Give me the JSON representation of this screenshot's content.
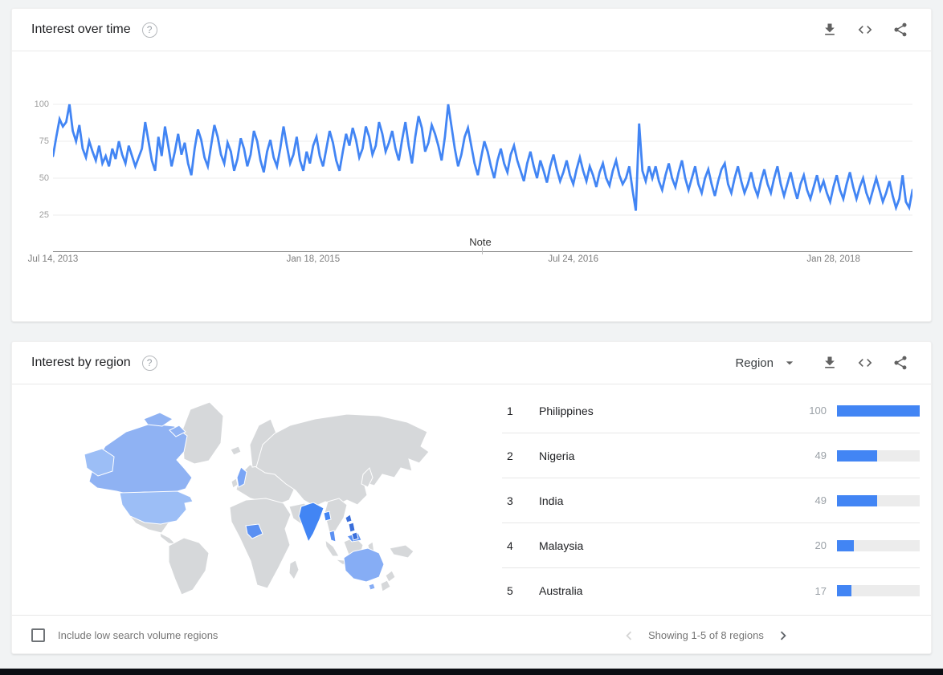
{
  "page": {
    "background": "#f1f3f4",
    "card_background": "#ffffff",
    "bottom_bar_color": "#0b0e13",
    "accent_blue": "#4285f4"
  },
  "interest_over_time": {
    "title": "Interest over time",
    "help_icon": "help-circle-icon",
    "toolbar_icons": [
      "download-icon",
      "embed-code-icon",
      "share-icon"
    ],
    "note_label": "Note",
    "y_ticks": [
      "100",
      "75",
      "50",
      "25"
    ],
    "x_ticks": [
      "Jul 14, 2013",
      "Jan 18, 2015",
      "Jul 24, 2016",
      "Jan 28, 2018"
    ]
  },
  "interest_by_region": {
    "title": "Interest by region",
    "help_icon": "help-circle-icon",
    "region_selector": {
      "label": "Region",
      "icon": "dropdown-arrow-icon"
    },
    "toolbar_icons": [
      "download-icon",
      "embed-code-icon",
      "share-icon"
    ],
    "rows": [
      {
        "rank": "1",
        "country": "Philippines",
        "value": 100
      },
      {
        "rank": "2",
        "country": "Nigeria",
        "value": 49
      },
      {
        "rank": "3",
        "country": "India",
        "value": 49
      },
      {
        "rank": "4",
        "country": "Malaysia",
        "value": 20
      },
      {
        "rank": "5",
        "country": "Australia",
        "value": 17
      }
    ],
    "footer": {
      "checkbox_label": "Include low search volume regions",
      "checkbox_checked": false,
      "pagination": "Showing 1-5 of 8 regions",
      "prev_enabled": false,
      "next_enabled": true
    },
    "map": {
      "base_color": "#d6d8da",
      "countries": {
        "canada": "#8fb2f3",
        "alaska": "#9cbef6",
        "usa": "#9cbef6",
        "uk": "#7aa5f5",
        "nigeria": "#5b90f2",
        "india": "#4285f4",
        "bangladesh": "#4285f4",
        "malaysia": "#5b90f2",
        "philippines": "#3b6fdb",
        "australia": "#86adf5"
      }
    }
  },
  "chart_data": [
    {
      "type": "line",
      "title": "Interest over time",
      "ylabel": "",
      "xlabel": "",
      "ylim": [
        0,
        100
      ],
      "y_ticks": [
        25,
        50,
        75,
        100
      ],
      "grid": true,
      "series_color": "#4285f4",
      "frequency": "weekly",
      "x_tick_labels": [
        "Jul 14, 2013",
        "Jan 18, 2015",
        "Jul 24, 2016",
        "Jan 28, 2018"
      ],
      "x_tick_indices": [
        0,
        79,
        158,
        237
      ],
      "values": [
        65,
        78,
        90,
        85,
        88,
        100,
        82,
        75,
        86,
        70,
        64,
        75,
        68,
        62,
        72,
        60,
        65,
        58,
        70,
        63,
        75,
        66,
        60,
        72,
        65,
        58,
        64,
        70,
        88,
        75,
        62,
        55,
        78,
        65,
        85,
        72,
        58,
        68,
        80,
        66,
        74,
        60,
        52,
        70,
        83,
        76,
        64,
        58,
        72,
        86,
        78,
        66,
        60,
        74,
        68,
        55,
        63,
        77,
        70,
        58,
        66,
        82,
        75,
        62,
        54,
        68,
        76,
        64,
        58,
        70,
        85,
        72,
        60,
        66,
        78,
        62,
        55,
        68,
        60,
        72,
        78,
        65,
        58,
        70,
        82,
        74,
        62,
        55,
        68,
        80,
        72,
        84,
        76,
        64,
        70,
        85,
        78,
        66,
        72,
        88,
        80,
        68,
        74,
        82,
        70,
        62,
        76,
        88,
        72,
        60,
        78,
        92,
        84,
        68,
        74,
        86,
        80,
        72,
        62,
        78,
        100,
        85,
        70,
        58,
        66,
        78,
        84,
        72,
        60,
        52,
        64,
        75,
        68,
        58,
        50,
        62,
        70,
        60,
        54,
        66,
        72,
        62,
        55,
        48,
        60,
        68,
        58,
        50,
        62,
        55,
        47,
        58,
        66,
        56,
        48,
        54,
        62,
        52,
        46,
        56,
        64,
        55,
        48,
        58,
        52,
        44,
        54,
        60,
        50,
        45,
        55,
        62,
        52,
        46,
        50,
        58,
        42,
        28,
        87,
        55,
        48,
        58,
        50,
        58,
        48,
        42,
        52,
        60,
        50,
        44,
        54,
        62,
        50,
        42,
        50,
        58,
        46,
        40,
        50,
        56,
        46,
        38,
        48,
        56,
        60,
        46,
        40,
        50,
        58,
        48,
        40,
        46,
        54,
        44,
        38,
        48,
        56,
        46,
        40,
        50,
        58,
        46,
        38,
        46,
        54,
        44,
        36,
        46,
        52,
        42,
        36,
        44,
        52,
        42,
        48,
        40,
        34,
        44,
        52,
        42,
        36,
        46,
        54,
        44,
        36,
        44,
        50,
        40,
        34,
        42,
        50,
        42,
        34,
        40,
        48,
        38,
        30,
        36,
        52,
        34,
        30,
        42
      ]
    },
    {
      "type": "bar",
      "title": "Interest by region",
      "categories": [
        "Philippines",
        "Nigeria",
        "India",
        "Malaysia",
        "Australia"
      ],
      "values": [
        100,
        49,
        49,
        20,
        17
      ],
      "bar_color": "#4285f4",
      "note": "Showing 1-5 of 8 regions"
    }
  ]
}
